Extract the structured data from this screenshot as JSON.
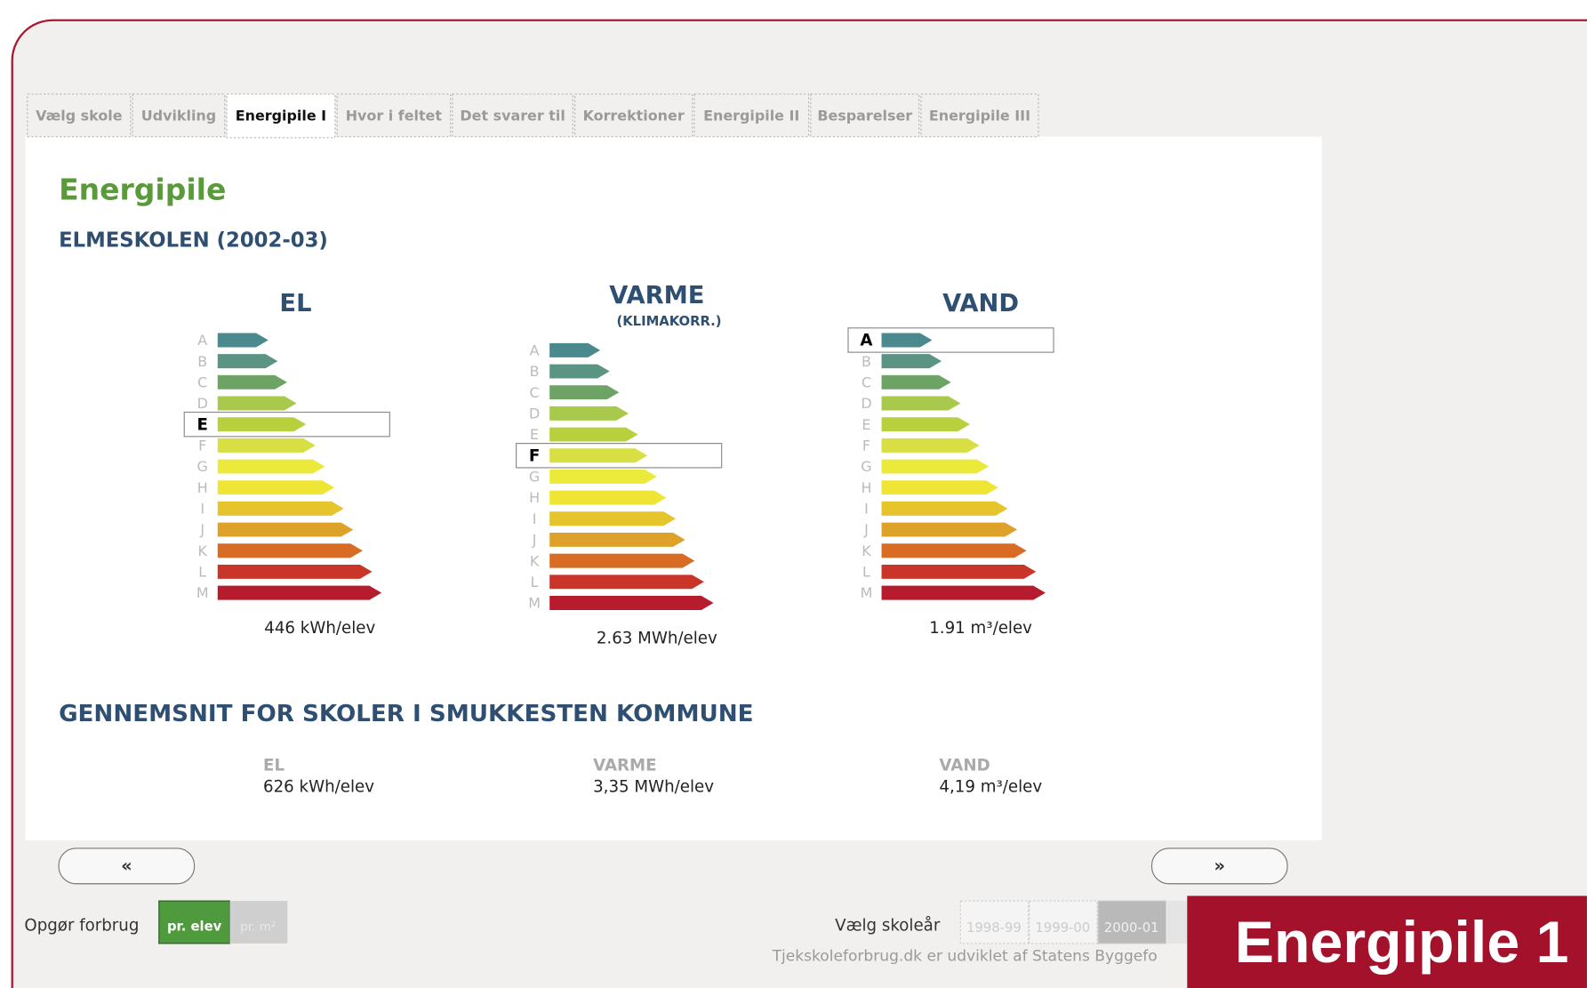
{
  "tabs": [
    "Vælg skole",
    "Udvikling",
    "Energipile I",
    "Hvor i feltet",
    "Det svarer til",
    "Korrektioner",
    "Energipile II",
    "Besparelser",
    "Energipile III"
  ],
  "active_tab": 2,
  "page_title": "Energipile",
  "school": "ELMESKOLEN (2002-03)",
  "scale": [
    "A",
    "B",
    "C",
    "D",
    "E",
    "F",
    "G",
    "H",
    "I",
    "J",
    "K",
    "L",
    "M"
  ],
  "meters": [
    {
      "heading": "EL",
      "selected": "E",
      "value": "446 kWh/elev"
    },
    {
      "heading": "VARME",
      "subheading": "(KLIMAKORR.)",
      "selected": "F",
      "value": "2.63 MWh/elev"
    },
    {
      "heading": "VAND",
      "selected": "A",
      "value": "1.91 m³/elev"
    }
  ],
  "average": {
    "title": "GENNEMSNIT FOR SKOLER I SMUKKESTEN KOMMUNE",
    "items": [
      {
        "label": "EL",
        "value": "626 kWh/elev"
      },
      {
        "label": "VARME",
        "value": "3,35 MWh/elev"
      },
      {
        "label": "VAND",
        "value": "4,19 m³/elev"
      }
    ]
  },
  "nav": {
    "prev": "«",
    "next": "»"
  },
  "footer": {
    "consumption_label": "Opgør forbrug",
    "units": [
      "pr. elev",
      "pr. m²"
    ],
    "year_label": "Vælg skoleår",
    "years": [
      "1998-99",
      "1999-00",
      "2000-01"
    ],
    "credit": "Tjekskoleforbrug.dk er udviklet af Statens Byggefo"
  },
  "badge": "Energipile 1"
}
